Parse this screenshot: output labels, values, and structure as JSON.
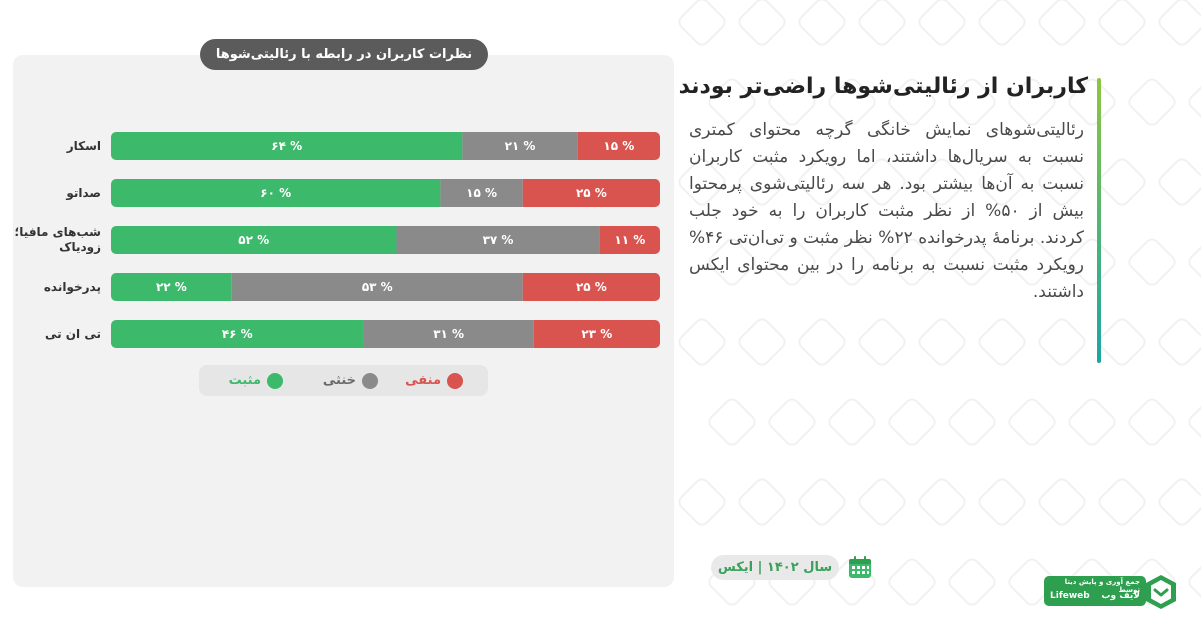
{
  "headline": "کاربران از رئالیتی‌شوها راضی‌تر بودند",
  "body": "رئالیتی‌شوهای نمایش خانگی گرچه محتوای کمتری نسبت به سریال‌ها داشتند، اما رویکرد مثبت کاربران نسبت به آن‌ها بیشتر بود. هر سه رئالیتی‌شوی پرمحتوا بیش از ۵۰% از نظر مثبت کاربران را به خود جلب کردند. برنامهٔ پدرخوانده ۲۲% نظر مثبت و تی‌ان‌تی ۴۶% رویکرد مثبت نسبت به برنامه را در بین محتوای ایکس داشتند.",
  "date_label": "سال ۱۴۰۲ | ایکس",
  "brand": {
    "tagline": "جمع آوری و پایش دیتا توسط",
    "name": "لایف وب",
    "latin": "Lifeweb"
  },
  "colors": {
    "positive": "#3db96b",
    "neutral": "#8a8a8a",
    "negative": "#d9534f"
  },
  "icons": [
    "calendar-icon",
    "lifeweb-logo-icon"
  ],
  "chart_data": {
    "type": "bar",
    "orientation": "horizontal-stacked-100",
    "title": "نظرات کاربران در رابطه با رئالیتی‌شوها",
    "categories": [
      "اسکار",
      "صداتو",
      "شب‌های مافیا؛ زودیاک",
      "پدرخوانده",
      "تی ان تی"
    ],
    "series": [
      {
        "name": "مثبت",
        "values": [
          64,
          60,
          52,
          22,
          46
        ],
        "labels": [
          "۶۴ %",
          "۶۰ %",
          "۵۲ %",
          "۲۲ %",
          "۴۶ %"
        ]
      },
      {
        "name": "خنثی",
        "values": [
          21,
          15,
          37,
          53,
          31
        ],
        "labels": [
          "۲۱ %",
          "۱۵ %",
          "۳۷ %",
          "۵۳ %",
          "۳۱ %"
        ]
      },
      {
        "name": "منفی",
        "values": [
          15,
          25,
          11,
          25,
          23
        ],
        "labels": [
          "۱۵ %",
          "۲۵ %",
          "۱۱ %",
          "۲۵ %",
          "۲۳ %"
        ]
      }
    ],
    "xlim": [
      0,
      100
    ],
    "legend_position": "bottom"
  }
}
